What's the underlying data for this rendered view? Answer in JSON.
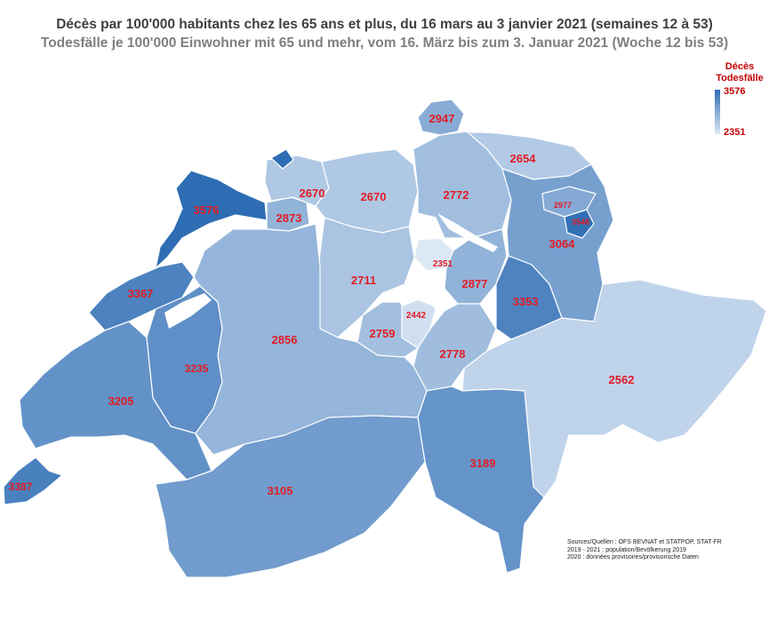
{
  "title_fr": "Décès par 100'000 habitants chez les 65 ans et plus, du 16 mars au 3 janvier 2021 (semaines 12 à 53)",
  "title_de": "Todesfälle je 100'000 Einwohner mit 65 und mehr, vom 16. März bis zum 3. Januar 2021 (Woche 12 bis 53)",
  "legend": {
    "title_fr": "Décès",
    "title_de": "Todesfälle",
    "max": "3576",
    "min": "2351",
    "color_high": "#2e6db4",
    "color_low": "#dde8f5"
  },
  "regions": [
    {
      "value": 3576
    },
    {
      "value": 2873
    },
    {
      "value": 2670
    },
    {
      "value": 2670
    },
    {
      "value": 2772
    },
    {
      "value": 2947
    },
    {
      "value": 2654
    },
    {
      "value": 3064
    },
    {
      "value": 2977
    },
    {
      "value": 3548
    },
    {
      "value": 2351
    },
    {
      "value": 2711
    },
    {
      "value": 2877
    },
    {
      "value": 3353
    },
    {
      "value": 2442
    },
    {
      "value": 2759
    },
    {
      "value": 2778
    },
    {
      "value": 2562
    },
    {
      "value": 3367
    },
    {
      "value": 3235
    },
    {
      "value": 3205
    },
    {
      "value": 2856
    },
    {
      "value": 3189
    },
    {
      "value": 3105
    },
    {
      "value": 3387
    }
  ],
  "sources": {
    "line1": "Sources/Quellen : OFS BEVNAT et STATPOP, STAT-FR",
    "line2": "2019 - 2021 : population/Bevölkerung 2019",
    "line3": "2020 : données provisoires/provisorische Daten"
  }
}
